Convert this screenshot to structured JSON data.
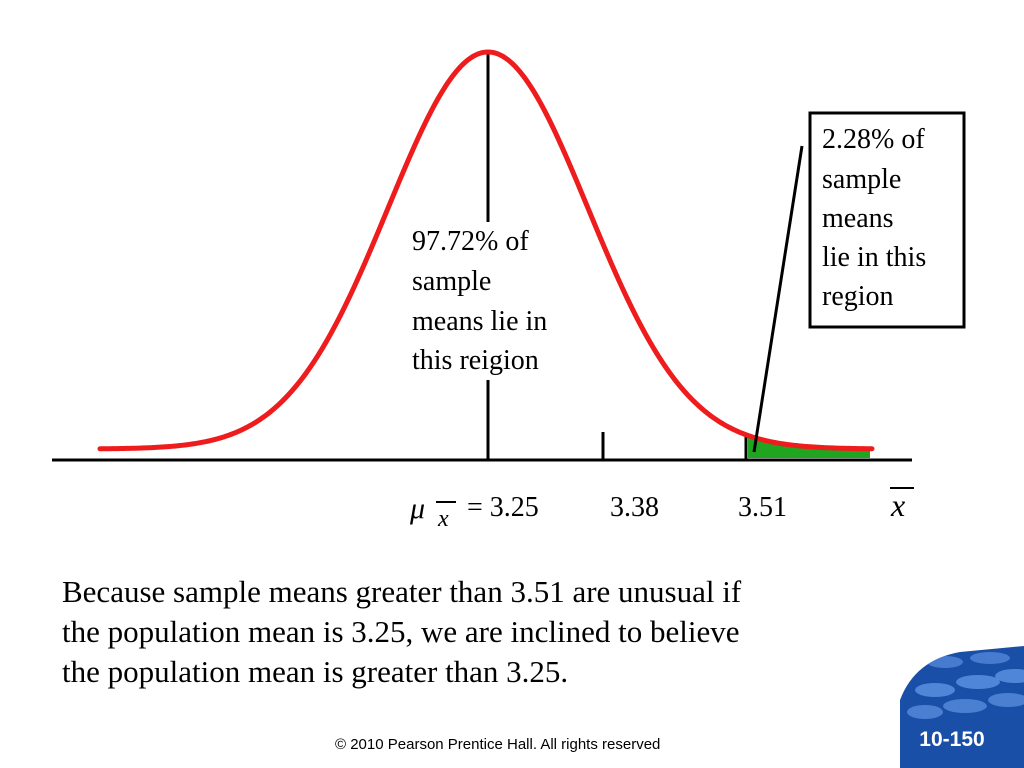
{
  "slide": {
    "annotation_center": {
      "lines": [
        "97.72% of",
        "sample",
        "means lie in",
        "this reigion"
      ]
    },
    "annotation_tail": {
      "lines": [
        "2.28% of",
        "sample",
        "means",
        "lie in this",
        "region"
      ]
    },
    "axis": {
      "mu_symbol": "μ",
      "x_symbol": "x",
      "mean_label": "= 3.25",
      "tick_label_2": "3.38",
      "tick_label_3": "3.51",
      "variable_label": "x"
    },
    "caption": {
      "lines": [
        "Because sample means greater than 3.51 are unusual if",
        "the population mean is 3.25, we are inclined to believe",
        "the population mean is greater than 3.25."
      ]
    },
    "copyright": "© 2010 Pearson Prentice Hall. All rights reserved",
    "slide_number": "10-150"
  },
  "colors": {
    "curve": "#ee1c1c",
    "tail_shade": "#1fa51f",
    "badge_dark": "#1a4fa8",
    "badge_light": "#5b8fe0"
  }
}
